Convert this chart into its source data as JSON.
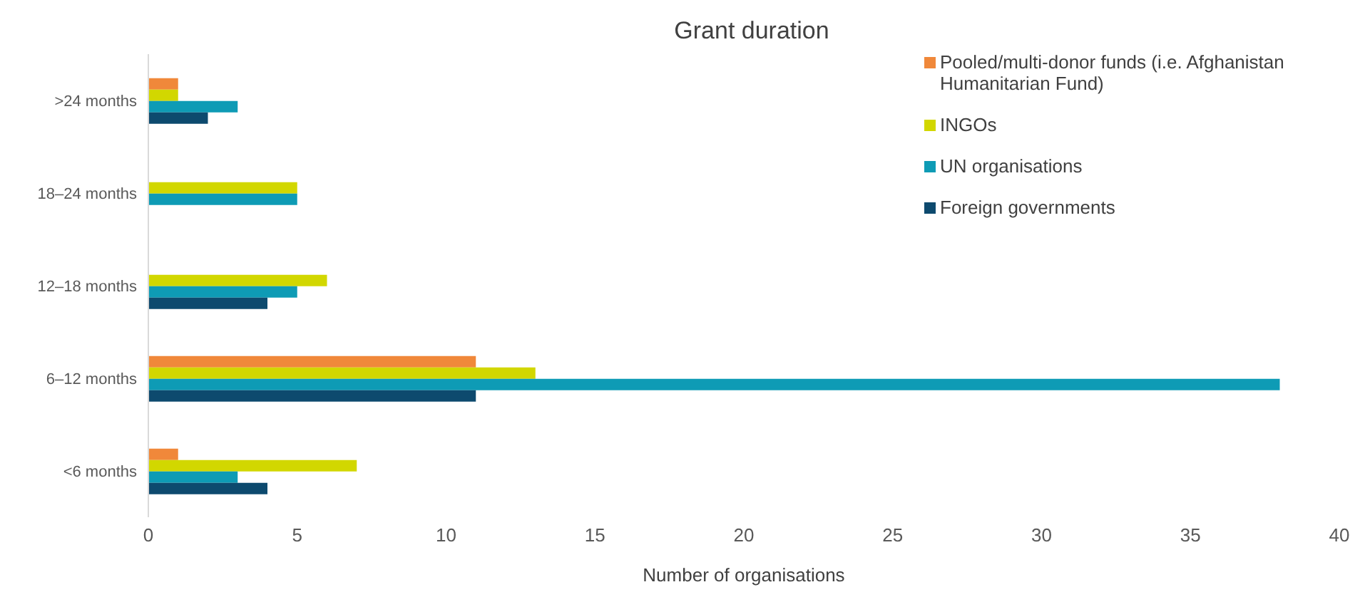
{
  "chart_data": {
    "type": "bar",
    "orientation": "horizontal",
    "title": "Grant duration",
    "xlabel": "Number of organisations",
    "categories": [
      ">24 months",
      "18–24 months",
      "12–18 months",
      "6–12 months",
      "<6 months"
    ],
    "series": [
      {
        "name": "Pooled/multi-donor funds (i.e. Afghanistan Humanitarian Fund)",
        "color": "#f0883a",
        "values": [
          1,
          null,
          null,
          11,
          1
        ]
      },
      {
        "name": "INGOs",
        "color": "#d2d700",
        "values": [
          1,
          5,
          6,
          13,
          7
        ]
      },
      {
        "name": "UN organisations",
        "color": "#0e9bb5",
        "values": [
          3,
          5,
          5,
          38,
          3
        ]
      },
      {
        "name": "Foreign governments",
        "color": "#0d4a6e",
        "values": [
          2,
          null,
          4,
          11,
          4
        ]
      }
    ],
    "xlim": [
      0,
      40
    ],
    "xticks": [
      0,
      5,
      10,
      15,
      20,
      25,
      30,
      35,
      40
    ],
    "grid": false,
    "legend": "top right"
  }
}
